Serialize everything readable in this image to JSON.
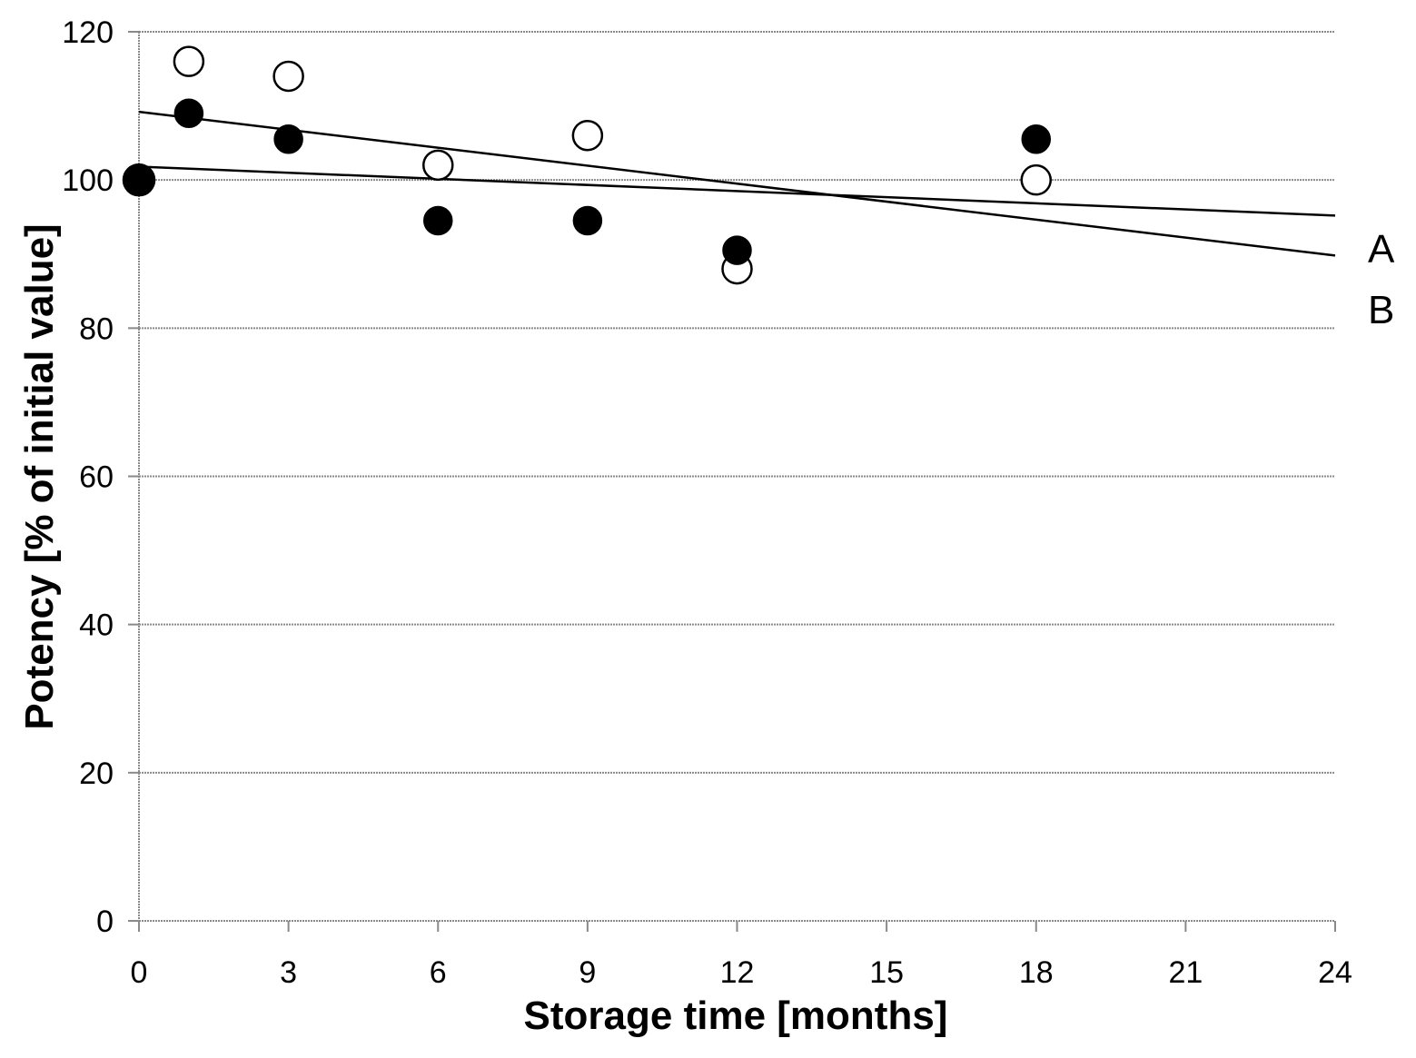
{
  "chart_data": {
    "type": "scatter",
    "xlabel": "Storage time [months]",
    "ylabel": "Potency [% of initial value]",
    "xlim": [
      0,
      24
    ],
    "ylim": [
      0,
      120
    ],
    "x_ticks": [
      0,
      3,
      6,
      9,
      12,
      15,
      18,
      21,
      24
    ],
    "x_tick_labels": [
      "0",
      "3",
      "6",
      "9",
      "12",
      "15",
      "18",
      "21",
      "24"
    ],
    "y_ticks": [
      0,
      20,
      40,
      60,
      80,
      100,
      120
    ],
    "y_tick_labels": [
      "0",
      "20",
      "40",
      "60",
      "80",
      "100",
      "120"
    ],
    "grid": "horizontal",
    "series": [
      {
        "marker": "open-circle",
        "points": [
          {
            "x": 0,
            "y": 100
          },
          {
            "x": 1,
            "y": 116
          },
          {
            "x": 3,
            "y": 114
          },
          {
            "x": 6,
            "y": 102
          },
          {
            "x": 9,
            "y": 106
          },
          {
            "x": 12,
            "y": 88
          },
          {
            "x": 18,
            "y": 100
          }
        ]
      },
      {
        "marker": "filled-circle",
        "points": [
          {
            "x": 0,
            "y": 100
          },
          {
            "x": 1,
            "y": 109
          },
          {
            "x": 3,
            "y": 105.5
          },
          {
            "x": 6,
            "y": 94.5
          },
          {
            "x": 9,
            "y": 94.5
          },
          {
            "x": 12,
            "y": 90.5
          },
          {
            "x": 18,
            "y": 105.5
          }
        ]
      }
    ],
    "trend_lines": [
      {
        "label": "A",
        "x0": 0,
        "y0": 109.2,
        "x1": 24,
        "y1": 89.8
      },
      {
        "label": "B",
        "x0": 0,
        "y0": 101.8,
        "x1": 24,
        "y1": 95.2
      }
    ],
    "colors": {
      "marker_fill": "#000000",
      "marker_open_fill": "#ffffff",
      "line": "#000000",
      "grid": "#8a8a8a"
    }
  }
}
